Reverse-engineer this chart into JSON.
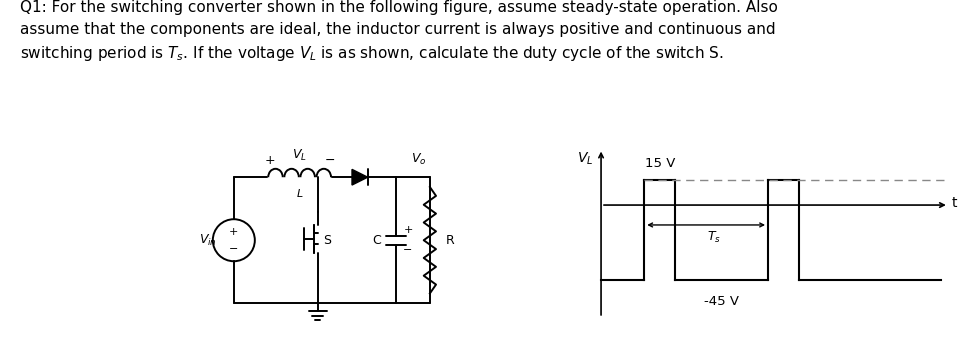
{
  "bg_color": "#ffffff",
  "question_lines": [
    "Q1: For the switching converter shown in the following figure, assume steady-state operation. Also",
    "assume that the components are ideal, the inductor current is always positive and continuous and",
    "switching period is Ts. If the voltage VL is as shown, calculate the duty cycle of the switch S."
  ],
  "waveform": {
    "v_high": 15,
    "v_low": -45,
    "label_high": "15 V",
    "label_low": "-45 V",
    "label_ts": "Ts",
    "label_t": "t",
    "label_vl": "VL"
  },
  "circuit": {
    "vin_label": "Vin",
    "vo_label": "Vo",
    "vl_label": "VL",
    "l_label": "L",
    "s_label": "S",
    "c_label": "C",
    "r_label": "R"
  }
}
